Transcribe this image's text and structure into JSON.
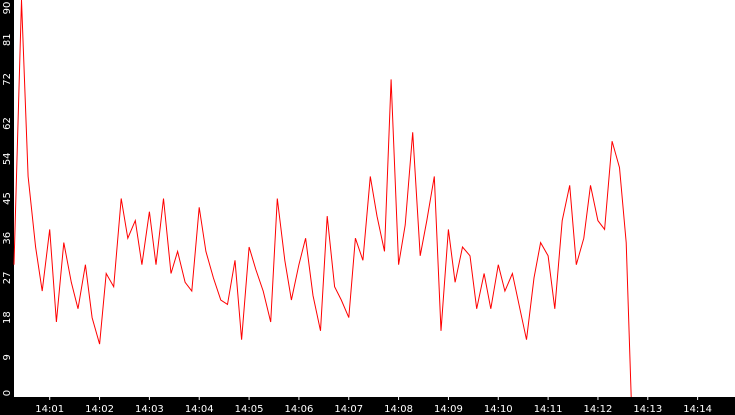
{
  "chart_data": {
    "type": "line",
    "title": "",
    "xlabel": "",
    "ylabel": "",
    "x_ticks": [
      "14:01",
      "14:02",
      "14:03",
      "14:04",
      "14:05",
      "14:06",
      "14:07",
      "14:08",
      "14:09",
      "14:10",
      "14:11",
      "14:12",
      "14:13",
      "14:14"
    ],
    "y_ticks": [
      "0",
      "9",
      "18",
      "27",
      "36",
      "45",
      "54",
      "62",
      "72",
      "81",
      "90"
    ],
    "ylim": [
      0,
      90
    ],
    "xlim": [
      "14:00:17",
      "14:14:45"
    ],
    "grid": false,
    "colors": {
      "plot_bg": "#ffffff",
      "frame": "#000000",
      "line": "#ff0000",
      "tick_text": "#ffffff"
    },
    "series": [
      {
        "x": [
          "14:00:17",
          "14:00:26",
          "14:00:34",
          "14:00:43",
          "14:00:51",
          "14:01:00",
          "14:01:08",
          "14:01:17",
          "14:01:26",
          "14:01:34",
          "14:01:43",
          "14:01:51",
          "14:02:00",
          "14:02:08",
          "14:02:17",
          "14:02:26",
          "14:02:34",
          "14:02:43",
          "14:02:51",
          "14:03:00",
          "14:03:08",
          "14:03:17",
          "14:03:26",
          "14:03:34",
          "14:03:43",
          "14:03:51",
          "14:04:00",
          "14:04:08",
          "14:04:17",
          "14:04:26",
          "14:04:34",
          "14:04:43",
          "14:04:51",
          "14:05:00",
          "14:05:08",
          "14:05:17",
          "14:05:26",
          "14:05:34",
          "14:05:43",
          "14:05:51",
          "14:06:00",
          "14:06:08",
          "14:06:17",
          "14:06:26",
          "14:06:34",
          "14:06:43",
          "14:06:51",
          "14:07:00",
          "14:07:08",
          "14:07:17",
          "14:07:26",
          "14:07:34",
          "14:07:43",
          "14:07:51",
          "14:08:00",
          "14:08:08",
          "14:08:17",
          "14:08:26",
          "14:08:34",
          "14:08:43",
          "14:08:51",
          "14:09:00",
          "14:09:08",
          "14:09:17",
          "14:09:26",
          "14:09:34",
          "14:09:43",
          "14:09:51",
          "14:10:00",
          "14:10:08",
          "14:10:17",
          "14:10:26",
          "14:10:34",
          "14:10:43",
          "14:10:51",
          "14:11:00",
          "14:11:08",
          "14:11:17",
          "14:11:26",
          "14:11:34",
          "14:11:43",
          "14:11:51",
          "14:12:00",
          "14:12:08",
          "14:12:17",
          "14:12:26",
          "14:12:34",
          "14:12:40"
        ],
        "y": [
          30,
          90,
          50,
          34,
          24,
          38,
          17,
          35,
          26,
          20,
          30,
          18,
          12,
          28,
          25,
          45,
          36,
          40,
          30,
          42,
          30,
          45,
          28,
          33,
          26,
          24,
          43,
          33,
          27,
          22,
          21,
          31,
          13,
          34,
          29,
          24,
          17,
          45,
          31,
          22,
          30,
          36,
          23,
          15,
          41,
          25,
          22,
          18,
          36,
          31,
          50,
          41,
          33,
          72,
          30,
          39,
          60,
          32,
          40,
          50,
          15,
          38,
          26,
          34,
          32,
          20,
          28,
          20,
          30,
          24,
          28,
          20,
          13,
          27,
          35,
          32,
          20,
          40,
          48,
          30,
          36,
          48,
          40,
          38,
          58,
          52,
          35,
          0
        ]
      }
    ]
  }
}
